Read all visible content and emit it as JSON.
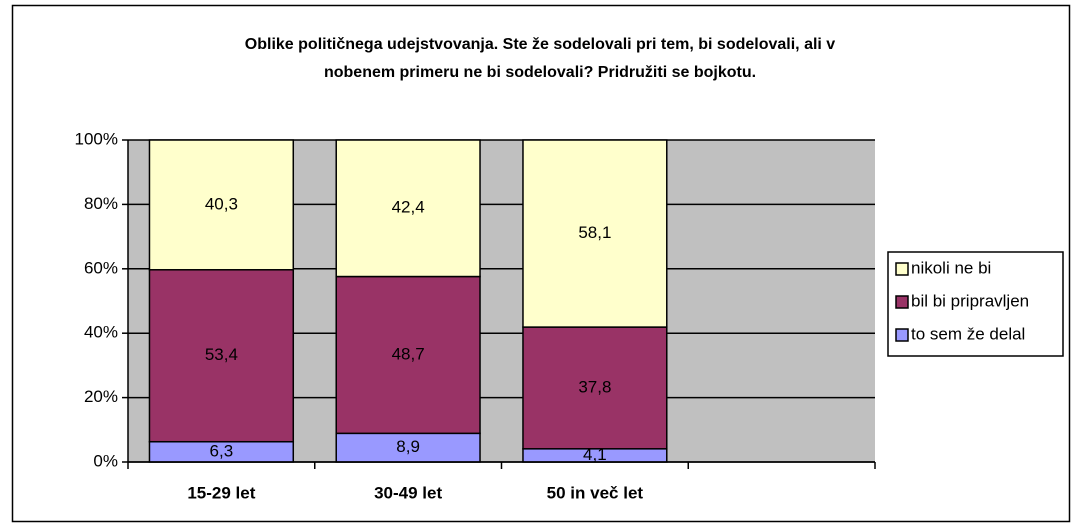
{
  "chart_data": {
    "type": "stacked_bar_100",
    "title": [
      "Oblike političnega udejstvovanja. Ste že sodelovali pri tem, bi sodelovali, ali v",
      "nobenem primeru ne bi sodelovali? Pridružiti se bojkotu."
    ],
    "categories": [
      "15-29 let",
      "30-49 let",
      "50 in več let",
      null
    ],
    "series": [
      {
        "name": "to sem že delal",
        "color": "#9999ff",
        "values": [
          6.3,
          8.9,
          4.1,
          null
        ],
        "value_labels": [
          "6,3",
          "8,9",
          "4,1",
          null
        ]
      },
      {
        "name": "bil bi pripravljen",
        "color": "#993366",
        "values": [
          53.4,
          48.7,
          37.8,
          null
        ],
        "value_labels": [
          "53,4",
          "48,7",
          "37,8",
          null
        ]
      },
      {
        "name": "nikoli ne bi",
        "color": "#ffffcc",
        "values": [
          40.3,
          42.4,
          58.1,
          null
        ],
        "value_labels": [
          "40,3",
          "42,4",
          "58,1",
          null
        ]
      }
    ],
    "ylim": [
      0,
      100
    ],
    "yticks": [
      {
        "value": 0,
        "label": "0%"
      },
      {
        "value": 20,
        "label": "20%"
      },
      {
        "value": 40,
        "label": "40%"
      },
      {
        "value": 60,
        "label": "60%"
      },
      {
        "value": 80,
        "label": "80%"
      },
      {
        "value": 100,
        "label": "100%"
      }
    ],
    "grid": true,
    "legend": "right",
    "plot_background": "#c0c0c0"
  }
}
